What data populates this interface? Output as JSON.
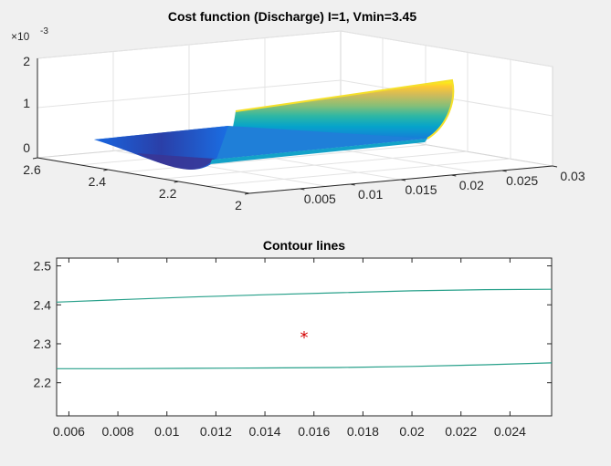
{
  "chart_data": [
    {
      "type": "surface",
      "title": "Cost function (Discharge) I=1, Vmin=3.45",
      "x_ticks": [
        "0.005",
        "0.01",
        "0.015",
        "0.02",
        "0.025",
        "0.03"
      ],
      "y_ticks": [
        "2",
        "2.2",
        "2.4",
        "2.6"
      ],
      "z_ticks": [
        "0",
        "1",
        "2"
      ],
      "z_exponent_label": "×10",
      "z_exponent_power": "-3",
      "xlim": [
        0.005,
        0.03
      ],
      "ylim": [
        2.0,
        2.6
      ],
      "zlim": [
        0,
        0.002
      ],
      "surface_x_range": [
        0.005,
        0.026
      ],
      "surface_y_range": [
        2.15,
        2.6
      ],
      "surface_min": {
        "x": 0.015,
        "y": 2.33,
        "z": 0.0
      },
      "surface_max_z": 0.0015,
      "colormap": "parula",
      "grid": true
    },
    {
      "type": "contour",
      "title": "Contour lines",
      "x_ticks": [
        "0.006",
        "0.008",
        "0.01",
        "0.012",
        "0.014",
        "0.016",
        "0.018",
        "0.02",
        "0.022",
        "0.024"
      ],
      "y_ticks": [
        "2.2",
        "2.3",
        "2.4",
        "2.5"
      ],
      "xlim": [
        0.0055,
        0.0257
      ],
      "ylim": [
        2.115,
        2.52
      ],
      "lines": [
        {
          "x": [
            0.0055,
            0.008,
            0.011,
            0.014,
            0.017,
            0.02,
            0.023,
            0.0257
          ],
          "y": [
            2.407,
            2.413,
            2.42,
            2.426,
            2.431,
            2.436,
            2.439,
            2.44
          ]
        },
        {
          "x": [
            0.0055,
            0.008,
            0.011,
            0.014,
            0.017,
            0.02,
            0.023,
            0.0257
          ],
          "y": [
            2.236,
            2.236,
            2.237,
            2.238,
            2.239,
            2.242,
            2.246,
            2.251
          ]
        }
      ],
      "line_color": "#27a08a",
      "marker": {
        "x": 0.0156,
        "y": 2.316,
        "symbol": "*",
        "color": "#d40000"
      }
    }
  ]
}
